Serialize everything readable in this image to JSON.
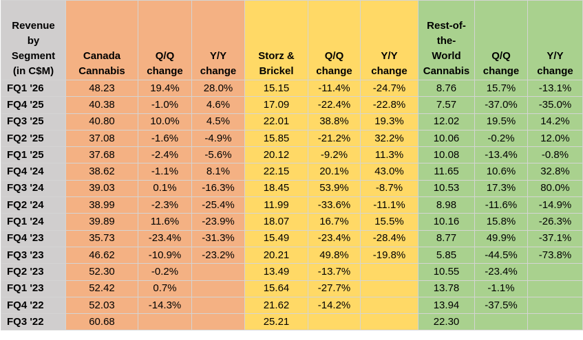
{
  "table": {
    "headers": [
      "Revenue by Segment (in C$M)",
      "Canada Cannabis",
      "Q/Q change",
      "Y/Y change",
      "Storz & Brickel",
      "Q/Q change",
      "Y/Y change",
      "Rest-of-the-World Cannabis",
      "Q/Q change",
      "Y/Y change"
    ],
    "header_lines": [
      [
        "Revenue",
        "by",
        "Segment",
        "(in C$M)"
      ],
      [
        "Canada",
        "Cannabis"
      ],
      [
        "Q/Q",
        "change"
      ],
      [
        "Y/Y",
        "change"
      ],
      [
        "Storz &",
        "Brickel"
      ],
      [
        "Q/Q",
        "change"
      ],
      [
        "Y/Y",
        "change"
      ],
      [
        "Rest-of-",
        "the-",
        "World",
        "Cannabis"
      ],
      [
        "Q/Q",
        "change"
      ],
      [
        "Y/Y",
        "change"
      ]
    ],
    "rows": [
      [
        "FQ1 '26",
        "48.23",
        "19.4%",
        "28.0%",
        "15.15",
        "-11.4%",
        "-24.7%",
        "8.76",
        "15.7%",
        "-13.1%"
      ],
      [
        "FQ4 '25",
        "40.38",
        "-1.0%",
        "4.6%",
        "17.09",
        "-22.4%",
        "-22.8%",
        "7.57",
        "-37.0%",
        "-35.0%"
      ],
      [
        "FQ3 '25",
        "40.80",
        "10.0%",
        "4.5%",
        "22.01",
        "38.8%",
        "19.3%",
        "12.02",
        "19.5%",
        "14.2%"
      ],
      [
        "FQ2 '25",
        "37.08",
        "-1.6%",
        "-4.9%",
        "15.85",
        "-21.2%",
        "32.2%",
        "10.06",
        "-0.2%",
        "12.0%"
      ],
      [
        "FQ1 '25",
        "37.68",
        "-2.4%",
        "-5.6%",
        "20.12",
        "-9.2%",
        "11.3%",
        "10.08",
        "-13.4%",
        "-0.8%"
      ],
      [
        "FQ4 '24",
        "38.62",
        "-1.1%",
        "8.1%",
        "22.15",
        "20.1%",
        "43.0%",
        "11.65",
        "10.6%",
        "32.8%"
      ],
      [
        "FQ3 '24",
        "39.03",
        "0.1%",
        "-16.3%",
        "18.45",
        "53.9%",
        "-8.7%",
        "10.53",
        "17.3%",
        "80.0%"
      ],
      [
        "FQ2 '24",
        "38.99",
        "-2.3%",
        "-25.4%",
        "11.99",
        "-33.6%",
        "-11.1%",
        "8.98",
        "-11.6%",
        "-14.9%"
      ],
      [
        "FQ1 '24",
        "39.89",
        "11.6%",
        "-23.9%",
        "18.07",
        "16.7%",
        "15.5%",
        "10.16",
        "15.8%",
        "-26.3%"
      ],
      [
        "FQ4 '23",
        "35.73",
        "-23.4%",
        "-31.3%",
        "15.49",
        "-23.4%",
        "-28.4%",
        "8.77",
        "49.9%",
        "-37.1%"
      ],
      [
        "FQ3 '23",
        "46.62",
        "-10.9%",
        "-23.2%",
        "20.21",
        "49.8%",
        "-19.8%",
        "5.85",
        "-44.5%",
        "-73.8%"
      ],
      [
        "FQ2 '23",
        "52.30",
        "-0.2%",
        "",
        "13.49",
        "-13.7%",
        "",
        "10.55",
        "-23.4%",
        ""
      ],
      [
        "FQ1 '23",
        "52.42",
        "0.7%",
        "",
        "15.64",
        "-27.7%",
        "",
        "13.78",
        "-1.1%",
        ""
      ],
      [
        "FQ4 '22",
        "52.03",
        "-14.3%",
        "",
        "21.62",
        "-14.2%",
        "",
        "13.94",
        "-37.5%",
        ""
      ],
      [
        "FQ3 '22",
        "60.68",
        "",
        "",
        "25.21",
        "",
        "",
        "22.30",
        "",
        ""
      ]
    ]
  },
  "colors": {
    "label_column": "#d0cece",
    "canada_cannabis": "#f4b183",
    "storz_brickel": "#ffd966",
    "rest_of_world": "#a9d18e"
  }
}
